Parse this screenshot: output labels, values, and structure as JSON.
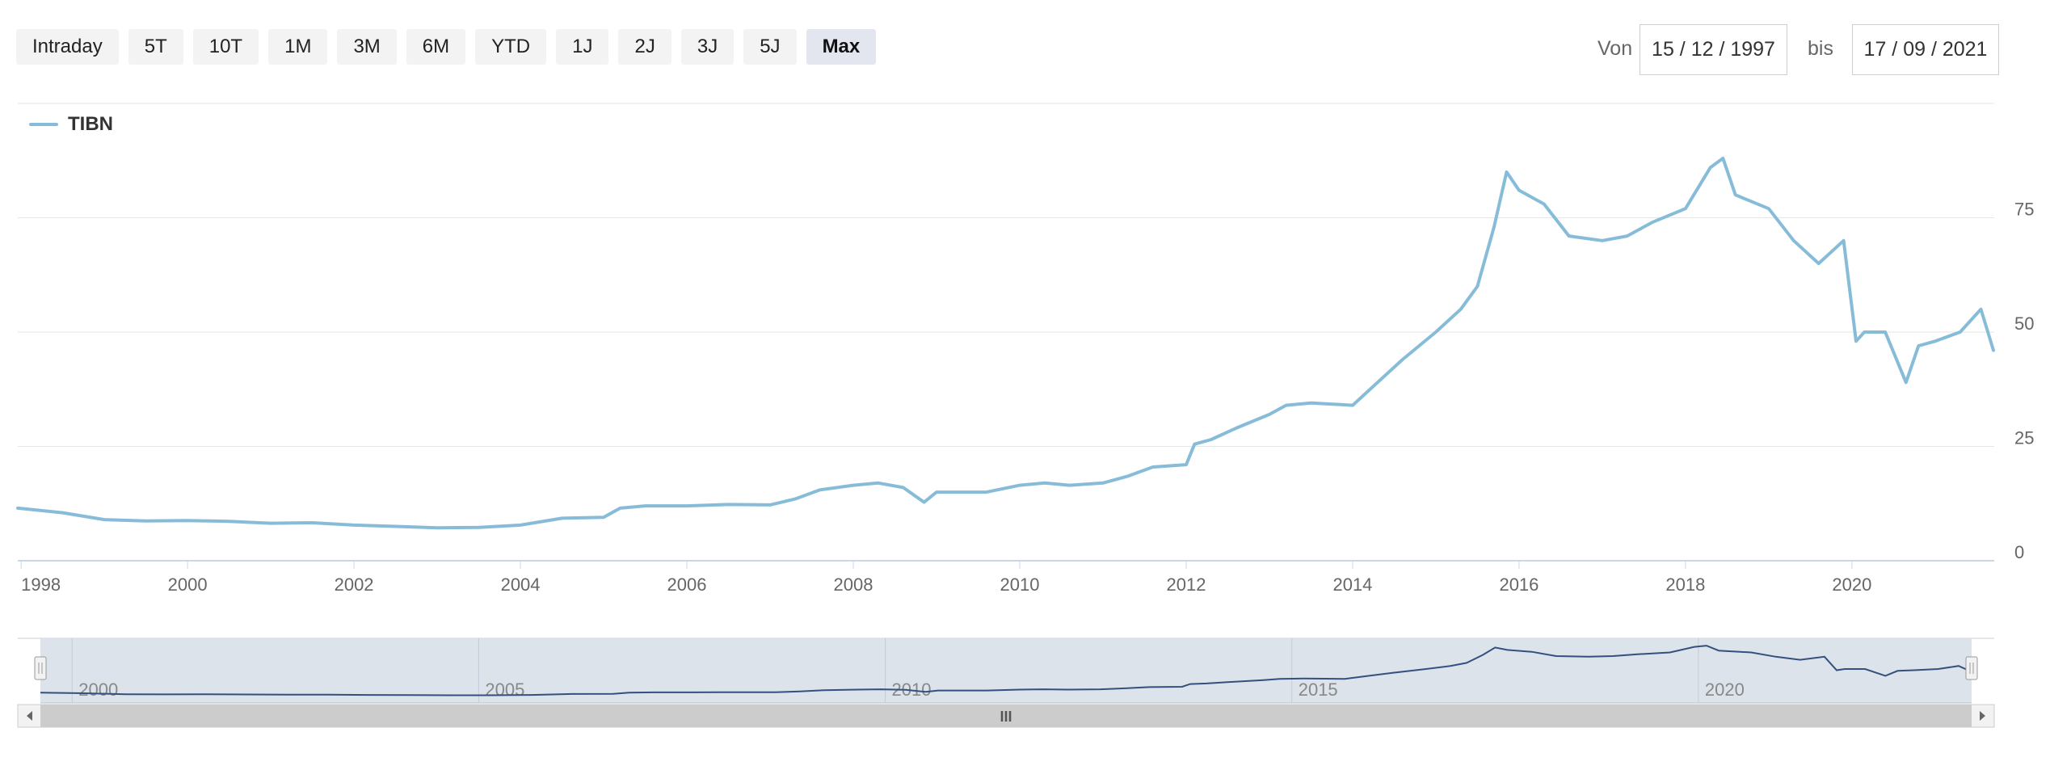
{
  "range_buttons": [
    {
      "label": "Intraday",
      "active": false
    },
    {
      "label": "5T",
      "active": false
    },
    {
      "label": "10T",
      "active": false
    },
    {
      "label": "1M",
      "active": false
    },
    {
      "label": "3M",
      "active": false
    },
    {
      "label": "6M",
      "active": false
    },
    {
      "label": "YTD",
      "active": false
    },
    {
      "label": "1J",
      "active": false
    },
    {
      "label": "2J",
      "active": false
    },
    {
      "label": "3J",
      "active": false
    },
    {
      "label": "5J",
      "active": false
    },
    {
      "label": "Max",
      "active": true
    }
  ],
  "date_range": {
    "from_label": "Von",
    "from_value": "15 / 12 / 1997",
    "to_label": "bis",
    "to_value": "17 / 09 / 2021"
  },
  "chart_data": {
    "type": "line",
    "series": [
      {
        "name": "TIBN",
        "color": "#87bcd9",
        "x": [
          1997.96,
          1998.5,
          1999.0,
          1999.5,
          2000.0,
          2000.5,
          2001.0,
          2001.5,
          2002.0,
          2002.5,
          2003.0,
          2003.5,
          2004.0,
          2004.5,
          2005.0,
          2005.2,
          2005.5,
          2006.0,
          2006.5,
          2007.0,
          2007.3,
          2007.6,
          2008.0,
          2008.3,
          2008.6,
          2008.85,
          2009.0,
          2009.3,
          2009.6,
          2010.0,
          2010.3,
          2010.6,
          2011.0,
          2011.3,
          2011.6,
          2012.0,
          2012.1,
          2012.3,
          2012.6,
          2013.0,
          2013.2,
          2013.5,
          2014.0,
          2014.3,
          2014.6,
          2015.0,
          2015.3,
          2015.5,
          2015.7,
          2015.85,
          2016.0,
          2016.3,
          2016.6,
          2017.0,
          2017.3,
          2017.6,
          2018.0,
          2018.3,
          2018.45,
          2018.6,
          2019.0,
          2019.3,
          2019.6,
          2019.9,
          2020.05,
          2020.15,
          2020.4,
          2020.65,
          2020.8,
          2021.0,
          2021.3,
          2021.55,
          2021.7
        ],
        "y": [
          11.5,
          10.5,
          9.0,
          8.7,
          8.8,
          8.6,
          8.2,
          8.3,
          7.8,
          7.5,
          7.2,
          7.3,
          7.8,
          9.3,
          9.5,
          11.5,
          12.0,
          12.0,
          12.3,
          12.2,
          13.5,
          15.5,
          16.5,
          17.0,
          16.0,
          12.8,
          15.0,
          15.0,
          15.0,
          16.5,
          17.0,
          16.5,
          17.0,
          18.5,
          20.5,
          21.0,
          25.5,
          26.5,
          29.0,
          32.0,
          34.0,
          34.5,
          34.0,
          39.0,
          44.0,
          50.0,
          55.0,
          60.0,
          73.0,
          85.0,
          81.0,
          78.0,
          71.0,
          70.0,
          71.0,
          74.0,
          77.0,
          86.0,
          88.0,
          80.0,
          77.0,
          70.0,
          65.0,
          70.0,
          48.0,
          50.0,
          50.0,
          39.0,
          47.0,
          48.0,
          50.0,
          55.0,
          46.0
        ]
      }
    ],
    "x_ticks": [
      1998,
      2000,
      2002,
      2004,
      2006,
      2008,
      2010,
      2012,
      2014,
      2016,
      2018,
      2020
    ],
    "x_tick_labels": [
      "1998",
      "2000",
      "2002",
      "2004",
      "2006",
      "2008",
      "2010",
      "2012",
      "2014",
      "2016",
      "2018",
      "2020"
    ],
    "y_ticks": [
      0,
      25,
      50,
      75
    ],
    "y_tick_labels": [
      "0",
      "25",
      "50",
      "75"
    ],
    "xlim": [
      1997.96,
      2021.71
    ],
    "ylim": [
      0,
      100
    ],
    "grid": true,
    "legend_position": "top-left",
    "navigator": {
      "ticks": [
        1998.35,
        2003.35,
        2008.35,
        2013.35,
        2018.35
      ],
      "labels": [
        "2000",
        "2005",
        "2010",
        "2015",
        "2020"
      ],
      "handle_glyph": "III"
    }
  }
}
